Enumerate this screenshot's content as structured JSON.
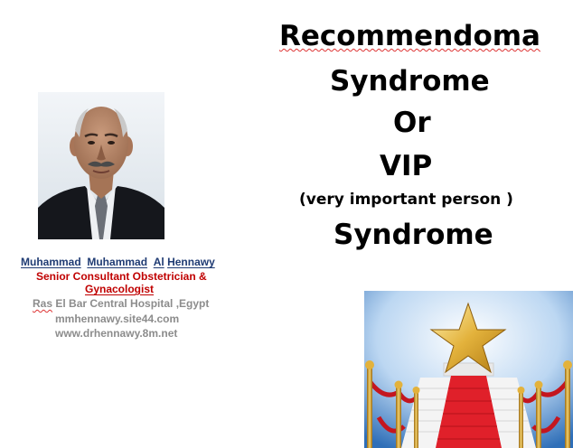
{
  "title": {
    "line1": "Recommendoma",
    "line2": "Syndrome",
    "line3": "Or",
    "line4": "VIP",
    "line5": "(very important person )",
    "line6": "Syndrome"
  },
  "author": {
    "name_first": "Muhammad",
    "name_middle": "Muhammad",
    "name_last_a": "Al",
    "name_last_b": "Hennawy",
    "title_line1": "Senior Consultant Obstetrician &",
    "title_line2": "Gynacologist",
    "hospital_a": "Ras",
    "hospital_b": " El Bar Central Hospital  ,Egypt",
    "website1": "mmhennawy.site44.com",
    "website2": "www.drhennawy.8m.net"
  },
  "colors": {
    "name": "#1f3b73",
    "title": "#c00000",
    "contact": "#8c8c8c",
    "carpet": "#e0202a",
    "gold": "#e3b23c"
  }
}
